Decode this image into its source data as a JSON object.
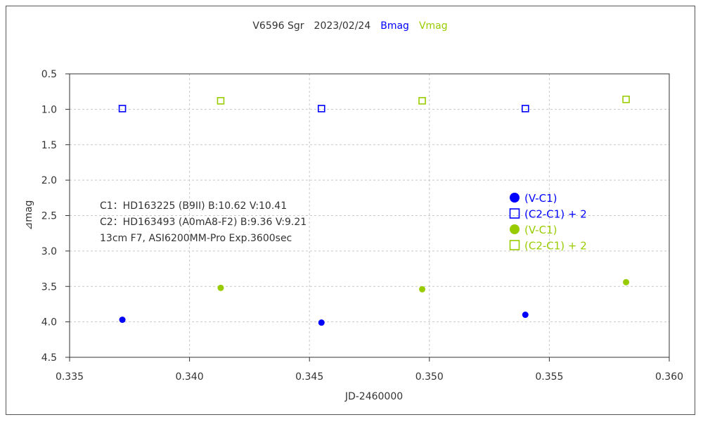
{
  "chart_data": {
    "type": "scatter",
    "title_parts": [
      {
        "text": "V6596 Sgr",
        "color": "#333333"
      },
      {
        "text": "2023/02/24",
        "color": "#333333"
      },
      {
        "text": "Bmag",
        "color": "#0000ff"
      },
      {
        "text": "Vmag",
        "color": "#99cc00"
      }
    ],
    "xlabel": "JD-2460000",
    "ylabel": "⊿mag",
    "xlim": [
      0.335,
      0.36
    ],
    "ylim": [
      0.5,
      4.5
    ],
    "y_inverted": true,
    "grid": true,
    "x_ticks": [
      "0.335",
      "0.340",
      "0.345",
      "0.350",
      "0.355",
      "0.360"
    ],
    "y_ticks": [
      "0.5",
      "1.0",
      "1.5",
      "2.0",
      "2.5",
      "3.0",
      "3.5",
      "4.0",
      "4.5"
    ],
    "annotation_lines": [
      "C1：HD163225 (B9II)  B:10.62  V:10.41",
      "C2：HD163493 (A0mA8-F2)  B:9.36  V:9.21",
      "13cm  F7,  ASI6200MM-Pro  Exp.3600sec"
    ],
    "legend_position": "right-middle",
    "series": [
      {
        "name": "(V-C1)",
        "color": "#0000ff",
        "marker": "filled-circle",
        "x": [
          0.3372,
          0.3455,
          0.354
        ],
        "y": [
          3.97,
          4.01,
          3.9
        ]
      },
      {
        "name": "(C2-C1) + 2",
        "color": "#0000ff",
        "marker": "open-square",
        "x": [
          0.3372,
          0.3455,
          0.354
        ],
        "y": [
          0.99,
          0.99,
          0.99
        ]
      },
      {
        "name": "(V-C1)",
        "color": "#99cc00",
        "marker": "filled-circle",
        "x": [
          0.3413,
          0.3497,
          0.3582
        ],
        "y": [
          3.52,
          3.54,
          3.44
        ]
      },
      {
        "name": "(C2-C1) + 2",
        "color": "#99cc00",
        "marker": "open-square",
        "x": [
          0.3413,
          0.3497,
          0.3582
        ],
        "y": [
          0.88,
          0.88,
          0.86
        ]
      }
    ]
  }
}
